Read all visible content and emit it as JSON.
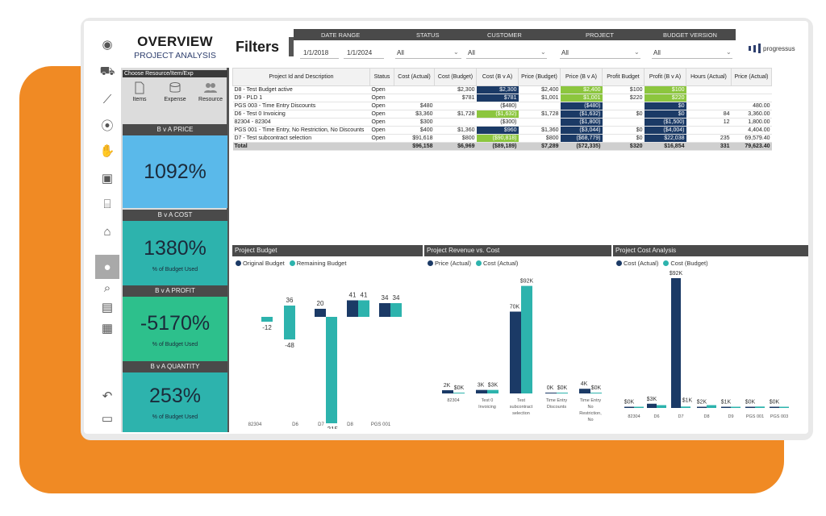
{
  "colors": {
    "navy": "#1b3a66",
    "teal": "#2db3ad",
    "green": "#8cc63e",
    "orange": "#f08a24",
    "header": "#4a4a4a"
  },
  "header": {
    "title": "OVERVIEW",
    "subtitle": "PROJECT ANALYSIS",
    "filters_label": "Filters"
  },
  "filters": {
    "labels": [
      "DATE RANGE",
      "STATUS",
      "CUSTOMER",
      "PROJECT",
      "BUDGET VERSION"
    ],
    "date_from": "1/1/2018",
    "date_to": "1/1/2024",
    "status": "All",
    "customer": "All",
    "customer2": "All",
    "project": "All",
    "budget_version": "All"
  },
  "logo": "progressus",
  "sidebar_icons": [
    "dashboard-icon",
    "car-icon",
    "trend-chart-icon",
    "badge-icon",
    "money-hand-icon",
    "calendar-clock-icon",
    "clipboard-icon",
    "toolbox-icon",
    "person-icon",
    "search-chart-icon",
    "window-table-icon",
    "calendar-grid-icon",
    "undo-icon",
    "comment-icon"
  ],
  "resource_panel": {
    "title": "Choose Resource/Item/Exp",
    "items_label": "Items",
    "expense_label": "Expense",
    "resource_label": "Resource"
  },
  "kpis": [
    {
      "title": "B v A PRICE",
      "value": "1092%",
      "sub": "",
      "color": "#5ab9ea"
    },
    {
      "title": "B v A COST",
      "value": "1380%",
      "sub": "% of Budget Used",
      "color": "#2db3ad"
    },
    {
      "title": "B v A PROFIT",
      "value": "-5170%",
      "sub": "% of Budget Used",
      "color": "#2dc08c"
    },
    {
      "title": "B v A QUANTITY",
      "value": "253%",
      "sub": "% of Budget Used",
      "color": "#2db3ad"
    }
  ],
  "table": {
    "columns": [
      "Project Id and Description",
      "Status",
      "Cost (Actual)",
      "Cost (Budget)",
      "Cost (B v A)",
      "Price (Budget)",
      "Price (B v A)",
      "Profit Budget",
      "Profit (B v A)",
      "Hours (Actual)",
      "Price (Actual)"
    ],
    "rows": [
      [
        "D8 - Test Budget active",
        "Open",
        "",
        "$2,300",
        "$2,300",
        "$2,400",
        "$2,400",
        "$100",
        "$100",
        "",
        ""
      ],
      [
        "D9 - PLD 1",
        "Open",
        "",
        "$781",
        "$781",
        "$1,001",
        "$1,001",
        "$220",
        "$220",
        "",
        ""
      ],
      [
        "PGS 003 - Time Entry Discounts",
        "Open",
        "$480",
        "",
        "($480)",
        "",
        "($480)",
        "",
        "$0",
        "",
        "480.00"
      ],
      [
        "D6 - Test 0 Invoicing",
        "Open",
        "$3,360",
        "$1,728",
        "($1,632)",
        "$1,728",
        "($1,632)",
        "$0",
        "$0",
        "84",
        "3,360.00"
      ],
      [
        "82304 - 82304",
        "Open",
        "$300",
        "",
        "($300)",
        "",
        "($1,800)",
        "",
        "($1,500)",
        "12",
        "1,800.00"
      ],
      [
        "PGS 001 - Time Entry, No Restriction, No Discounts",
        "Open",
        "$400",
        "$1,360",
        "$960",
        "$1,360",
        "($3,044)",
        "$0",
        "($4,004)",
        "",
        "4,404.00"
      ],
      [
        "D7 - Test subcontract selection",
        "Open",
        "$91,618",
        "$800",
        "($90,818)",
        "$800",
        "($68,779)",
        "$0",
        "$22,038",
        "235",
        "69,579.40"
      ]
    ],
    "cell_styles": [
      [
        "",
        "",
        "",
        "",
        "nv",
        "",
        "gr",
        "",
        "gr",
        "",
        ""
      ],
      [
        "",
        "",
        "",
        "",
        "nv",
        "",
        "gr",
        "",
        "gr",
        "",
        ""
      ],
      [
        "",
        "",
        "",
        "",
        "",
        "",
        "nv",
        "",
        "nv",
        "",
        ""
      ],
      [
        "",
        "",
        "",
        "",
        "gr",
        "",
        "nv",
        "",
        "nv",
        "",
        ""
      ],
      [
        "",
        "",
        "",
        "",
        "",
        "",
        "nv",
        "",
        "nv",
        "",
        ""
      ],
      [
        "",
        "",
        "",
        "",
        "nv",
        "",
        "nv",
        "",
        "nv",
        "",
        ""
      ],
      [
        "",
        "",
        "",
        "",
        "gr",
        "",
        "nv",
        "",
        "nv",
        "",
        ""
      ]
    ],
    "total": [
      "Total",
      "",
      "$96,158",
      "$6,969",
      "($89,189)",
      "$7,289",
      "($72,335)",
      "$320",
      "$16,854",
      "331",
      "79,623.40"
    ]
  },
  "charts": {
    "budget": {
      "title": "Project Budget",
      "legend": [
        "Original Budget",
        "Remaining Budget"
      ]
    },
    "revenue": {
      "title": "Project Revenue vs. Cost",
      "legend": [
        "Price (Actual)",
        "Cost (Actual)"
      ]
    },
    "cost": {
      "title": "Project Cost Analysis",
      "legend": [
        "Cost (Actual)",
        "Cost (Budget)"
      ]
    }
  },
  "chart_data": [
    {
      "type": "bar",
      "title": "Project Budget",
      "categories": [
        "82304",
        "D6",
        "D7",
        "D8",
        "PGS 001"
      ],
      "series": [
        {
          "name": "Original Budget",
          "values": [
            0,
            0,
            0,
            41,
            34
          ]
        },
        {
          "name": "Remaining Budget",
          "values": [
            -12,
            36,
            -215,
            41,
            34
          ]
        }
      ],
      "extra_labels": {
        "Original Budget": [
          "",
          "",
          "20",
          "",
          ""
        ],
        "Remaining Budget_secondary": [
          "",
          "-48",
          "",
          "",
          ""
        ]
      }
    },
    {
      "type": "bar",
      "title": "Project Revenue vs. Cost",
      "categories": [
        "82304",
        "Test 0 Invoicing",
        "Test subcontract selection",
        "Time Entry Discounts",
        "Time Entry No Restriction, No Discounts"
      ],
      "series": [
        {
          "name": "Price (Actual)",
          "values": [
            2,
            3,
            70,
            0,
            4
          ]
        },
        {
          "name": "Cost (Actual)",
          "values": [
            0,
            3,
            92,
            0,
            0
          ]
        }
      ],
      "labels": [
        [
          "2K",
          "$0K"
        ],
        [
          "3K",
          "$3K"
        ],
        [
          "70K",
          "$92K"
        ],
        [
          "0K",
          "$0K"
        ],
        [
          "4K",
          "$0K"
        ]
      ]
    },
    {
      "type": "bar",
      "title": "Project Cost Analysis",
      "categories": [
        "82304",
        "D6",
        "D7",
        "D8",
        "D9",
        "PGS 001",
        "PGS 003"
      ],
      "series": [
        {
          "name": "Cost (Actual)",
          "values": [
            0,
            3,
            92,
            0,
            0,
            0,
            0
          ]
        },
        {
          "name": "Cost (Budget)",
          "values": [
            0,
            2,
            1,
            2,
            0,
            1,
            0
          ]
        }
      ],
      "labels": [
        [
          "$0K",
          ""
        ],
        [
          "$3K",
          ""
        ],
        [
          "$92K",
          "$1K"
        ],
        [
          "$2K",
          ""
        ],
        [
          "$1K",
          ""
        ],
        [
          "$0K",
          ""
        ],
        [
          "$0K",
          ""
        ]
      ]
    }
  ]
}
